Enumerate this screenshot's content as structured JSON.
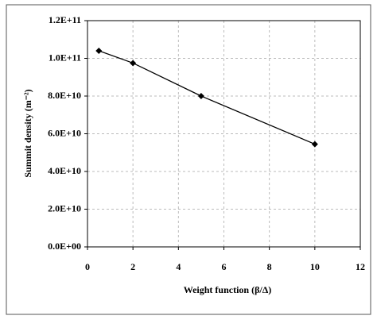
{
  "chart_data": {
    "type": "line",
    "x_label": "Weight function (β/Δ)",
    "y_label": "Summit density (m⁻²)",
    "x": [
      0.5,
      2,
      5,
      10
    ],
    "series": [
      {
        "name": "Summit density",
        "color": "#000000",
        "values": [
          104000000000,
          97500000000,
          80000000000,
          54500000000
        ]
      }
    ],
    "xlim": [
      0,
      12
    ],
    "xticks": [
      0,
      2,
      4,
      6,
      8,
      10,
      12
    ],
    "ylim": [
      0,
      120000000000
    ],
    "yticks": [
      {
        "value": 0,
        "label": "0.0E+00"
      },
      {
        "value": 20000000000,
        "label": "2.0E+10"
      },
      {
        "value": 40000000000,
        "label": "4.0E+10"
      },
      {
        "value": 60000000000,
        "label": "6.0E+10"
      },
      {
        "value": 80000000000,
        "label": "8.0E+10"
      },
      {
        "value": 100000000000,
        "label": "1.0E+11"
      },
      {
        "value": 120000000000,
        "label": "1.2E+11"
      }
    ],
    "grid": true
  }
}
